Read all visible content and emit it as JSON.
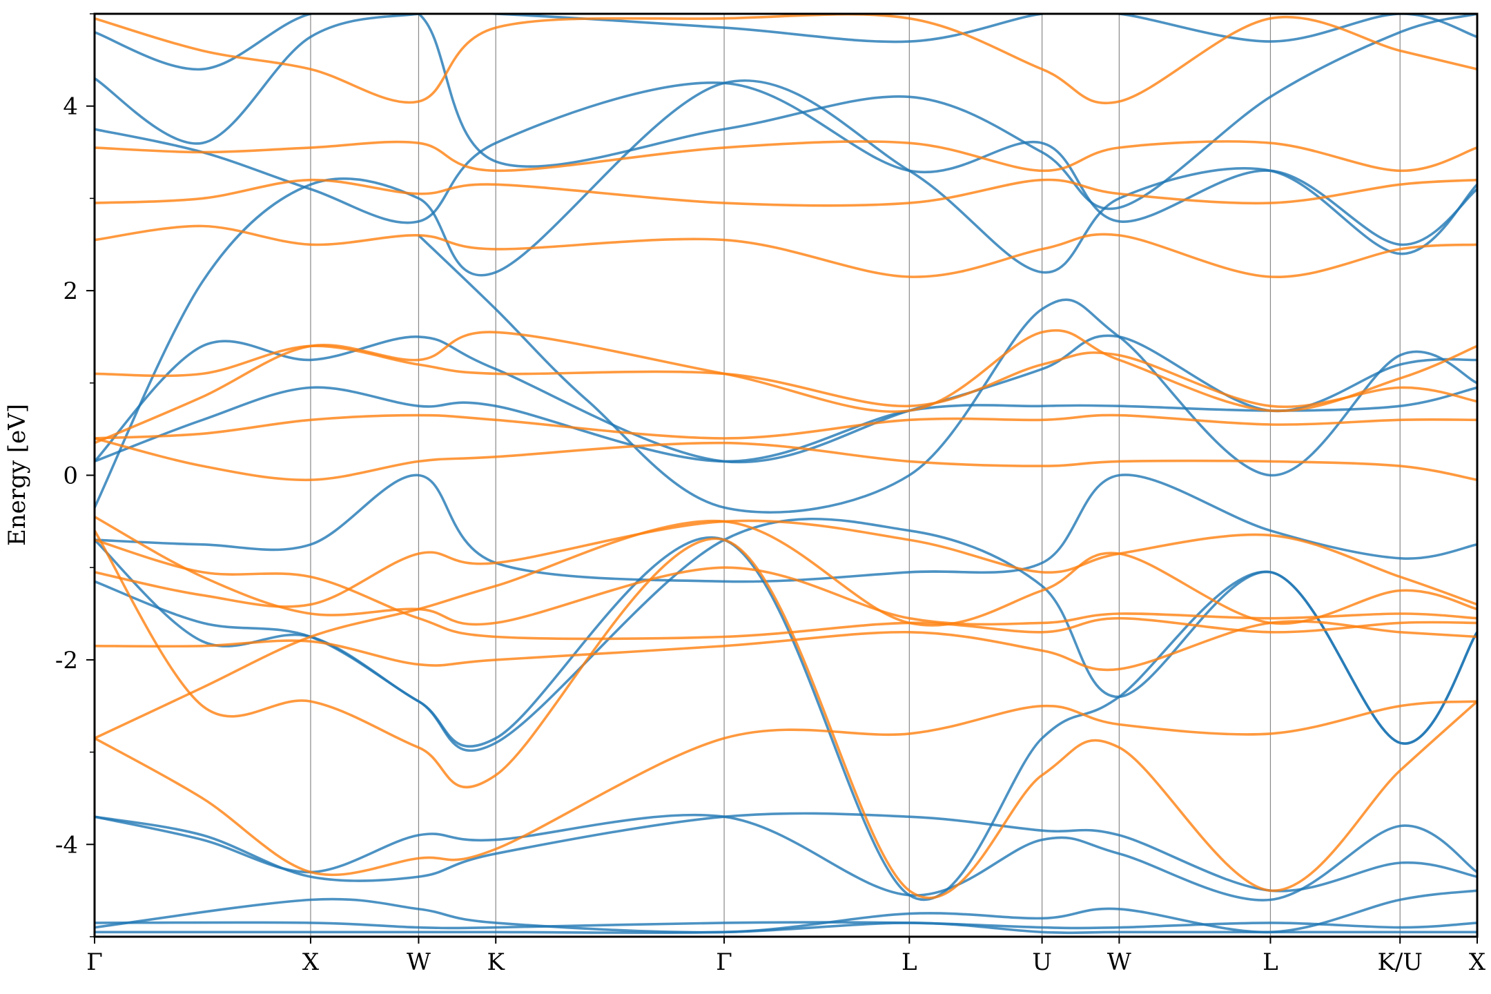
{
  "chart_data": {
    "type": "line",
    "title": "",
    "xlabel": "",
    "ylabel": "Energy [eV]",
    "ylim": [
      -5,
      5
    ],
    "xlim": [
      0,
      4.48
    ],
    "grid": false,
    "legend": "none",
    "yticks": [
      -4,
      -2,
      0,
      2,
      4
    ],
    "yticks_minor": [
      -5,
      -3,
      -1,
      1,
      3,
      5
    ],
    "ytick_labels": [
      "-4",
      "-2",
      "0",
      "2",
      "4"
    ],
    "kpoints": [
      {
        "label": "Γ",
        "x": 0.0
      },
      {
        "label": "X",
        "x": 0.7
      },
      {
        "label": "W",
        "x": 1.05
      },
      {
        "label": "K",
        "x": 1.3
      },
      {
        "label": "Γ",
        "x": 2.04
      },
      {
        "label": "L",
        "x": 2.64
      },
      {
        "label": "U",
        "x": 3.07
      },
      {
        "label": "W",
        "x": 3.32
      },
      {
        "label": "L",
        "x": 3.81
      },
      {
        "label": "K/U",
        "x": 4.23
      },
      {
        "label": "X",
        "x": 4.48
      }
    ],
    "series_colors": {
      "blue": "#1f77b4",
      "orange": "#ff7f0e"
    },
    "series": [
      {
        "color": "blue",
        "x": [
          0,
          0.7,
          1.05,
          1.3,
          2.04,
          2.64,
          3.07,
          3.32,
          3.81,
          4.23,
          4.48
        ],
        "y": [
          -4.85,
          -4.85,
          -4.9,
          -4.9,
          -4.85,
          -4.85,
          -4.9,
          -4.9,
          -4.85,
          -4.9,
          -4.85
        ]
      },
      {
        "color": "blue",
        "x": [
          0,
          0.7,
          1.05,
          1.3,
          2.04,
          2.64,
          3.07,
          3.32,
          3.81,
          4.23,
          4.48
        ],
        "y": [
          -4.9,
          -4.6,
          -4.7,
          -4.85,
          -4.95,
          -4.75,
          -4.8,
          -4.7,
          -4.95,
          -4.6,
          -4.5
        ]
      },
      {
        "color": "blue",
        "x": [
          0,
          0.35,
          0.7,
          1.05,
          1.3,
          2.04,
          2.64,
          3.07,
          3.32,
          3.81,
          4.23,
          4.48
        ],
        "y": [
          -3.7,
          -3.9,
          -4.35,
          -4.35,
          -4.1,
          -3.7,
          -3.7,
          -3.85,
          -3.9,
          -4.5,
          -4.2,
          -4.35
        ]
      },
      {
        "color": "blue",
        "x": [
          0,
          0.35,
          0.7,
          1.05,
          1.3,
          2.04,
          2.64,
          3.07,
          3.32,
          3.81,
          4.23,
          4.48
        ],
        "y": [
          -3.7,
          -3.95,
          -4.3,
          -3.9,
          -3.95,
          -3.7,
          -4.55,
          -3.95,
          -4.1,
          -4.6,
          -3.8,
          -4.3
        ]
      },
      {
        "color": "blue",
        "x": [
          0,
          0.35,
          0.7,
          1.05,
          1.3,
          2.04,
          2.64,
          3.07,
          3.32,
          3.81,
          4.23,
          4.48
        ],
        "y": [
          -0.7,
          -1.8,
          -1.75,
          -2.45,
          -2.85,
          -0.7,
          -4.55,
          -2.85,
          -2.4,
          -1.05,
          -2.9,
          -1.7
        ]
      },
      {
        "color": "blue",
        "x": [
          0,
          0.35,
          0.7,
          1.05,
          1.3,
          2.04,
          2.64,
          3.07,
          3.32,
          3.81,
          4.23,
          4.48
        ],
        "y": [
          -0.7,
          -0.75,
          -0.75,
          0.0,
          -0.95,
          -1.15,
          -1.05,
          -0.95,
          0.0,
          -0.6,
          -0.9,
          -0.75
        ]
      },
      {
        "color": "blue",
        "x": [
          0,
          0.35,
          0.7,
          1.05,
          1.3,
          2.04,
          2.64,
          3.07,
          3.32,
          3.81,
          4.23,
          4.48
        ],
        "y": [
          -1.15,
          -1.6,
          -1.75,
          -2.45,
          -2.9,
          -0.7,
          -0.6,
          -1.2,
          -2.4,
          -1.05,
          -2.9,
          -1.7
        ]
      },
      {
        "color": "blue",
        "x": [
          0,
          0.35,
          0.7,
          1.05,
          1.3,
          2.04,
          2.64,
          3.07,
          3.32,
          3.81,
          4.23,
          4.48
        ],
        "y": [
          0.15,
          0.6,
          0.95,
          0.75,
          0.75,
          0.15,
          0.7,
          0.75,
          0.75,
          0.7,
          0.75,
          0.95
        ]
      },
      {
        "color": "blue",
        "x": [
          0,
          0.35,
          0.7,
          1.05,
          1.3,
          2.04,
          2.64,
          3.07,
          3.32,
          3.81,
          4.23,
          4.48
        ],
        "y": [
          0.15,
          1.4,
          1.25,
          1.5,
          1.15,
          0.15,
          0.7,
          1.15,
          1.5,
          0.7,
          1.2,
          1.25
        ]
      },
      {
        "color": "blue",
        "x": [
          0,
          0.35,
          0.7,
          1.05,
          1.3,
          2.04,
          2.64,
          3.07,
          3.32,
          3.81,
          4.23,
          4.48
        ],
        "y": [
          -0.35,
          2.1,
          3.15,
          3.0,
          2.2,
          4.25,
          3.3,
          2.2,
          3.0,
          3.3,
          2.4,
          3.15
        ]
      },
      {
        "color": "blue",
        "x": [
          0,
          0.35,
          0.7,
          1.05,
          1.3,
          2.04,
          2.64,
          3.07,
          3.32,
          3.81,
          4.23,
          4.48
        ],
        "y": [
          3.75,
          3.5,
          3.1,
          2.75,
          3.6,
          4.25,
          3.3,
          3.6,
          2.75,
          3.3,
          2.5,
          3.1
        ]
      },
      {
        "color": "blue",
        "x": [
          0,
          0.35,
          0.7,
          1.05,
          1.3,
          2.04,
          2.64,
          3.07,
          3.32,
          3.81,
          4.23,
          4.48
        ],
        "y": [
          4.3,
          3.6,
          4.75,
          5.0,
          5.0,
          4.85,
          4.7,
          5.0,
          5.0,
          4.7,
          5.0,
          4.75
        ]
      },
      {
        "color": "blue",
        "x": [
          0,
          0.35,
          0.7,
          1.05,
          1.3,
          2.04,
          2.64,
          3.07,
          3.32,
          3.81,
          4.23,
          4.48
        ],
        "y": [
          4.8,
          4.4,
          5.0,
          5.0,
          3.4,
          3.75,
          4.1,
          3.5,
          2.9,
          4.1,
          4.8,
          5.0
        ]
      },
      {
        "color": "blue",
        "x": [
          0,
          1.05,
          1.3,
          2.04,
          2.64,
          3.07,
          3.32,
          3.81,
          4.23,
          4.48
        ],
        "y": [
          -4.95,
          -4.95,
          -4.95,
          -4.95,
          -4.85,
          -4.95,
          -4.95,
          -4.95,
          -4.95,
          -4.95
        ]
      },
      {
        "color": "blue",
        "x": [
          1.05,
          1.3,
          1.6,
          2.04,
          2.64,
          3.07,
          3.32,
          3.81,
          4.23,
          4.48
        ],
        "y": [
          2.6,
          1.8,
          0.8,
          -0.35,
          0.0,
          1.8,
          1.5,
          0.0,
          1.3,
          1.0
        ]
      },
      {
        "color": "orange",
        "x": [
          0,
          0.35,
          0.7,
          1.05,
          1.3,
          2.04,
          2.64,
          3.07,
          3.32,
          3.81,
          4.23,
          4.48
        ],
        "y": [
          -2.85,
          -2.3,
          -1.75,
          -1.45,
          -1.2,
          -0.5,
          -1.6,
          -1.25,
          -0.85,
          -1.6,
          -1.25,
          -1.45
        ]
      },
      {
        "color": "orange",
        "x": [
          0,
          0.35,
          0.7,
          1.05,
          1.3,
          2.04,
          2.64,
          3.07,
          3.32,
          3.81,
          4.23,
          4.48
        ],
        "y": [
          -2.85,
          -3.5,
          -4.3,
          -4.15,
          -4.05,
          -2.85,
          -2.8,
          -2.5,
          -2.7,
          -2.8,
          -2.5,
          -2.45
        ]
      },
      {
        "color": "orange",
        "x": [
          0,
          0.35,
          0.7,
          1.05,
          1.3,
          2.04,
          2.64,
          3.07,
          3.32,
          3.81,
          4.23,
          4.48
        ],
        "y": [
          -1.85,
          -1.85,
          -1.8,
          -2.05,
          -2.0,
          -1.85,
          -1.7,
          -1.9,
          -2.1,
          -1.6,
          -1.7,
          -1.75
        ]
      },
      {
        "color": "orange",
        "x": [
          0,
          0.35,
          0.7,
          1.05,
          1.3,
          2.04,
          2.64,
          3.07,
          3.32,
          3.81,
          4.23,
          4.48
        ],
        "y": [
          -1.05,
          -1.3,
          -1.4,
          -0.85,
          -0.95,
          -0.5,
          -0.7,
          -1.05,
          -0.85,
          -0.65,
          -1.1,
          -1.4
        ]
      },
      {
        "color": "orange",
        "x": [
          0,
          0.35,
          0.7,
          1.05,
          1.3,
          2.04,
          2.64,
          3.07,
          3.32,
          3.81,
          4.23,
          4.48
        ],
        "y": [
          -0.45,
          -1.1,
          -1.5,
          -1.45,
          -1.6,
          -1.0,
          -1.55,
          -1.6,
          -1.5,
          -1.55,
          -1.5,
          -1.55
        ]
      },
      {
        "color": "orange",
        "x": [
          0,
          0.35,
          0.7,
          1.05,
          1.3,
          2.04,
          2.64,
          3.07,
          3.32,
          3.81,
          4.23,
          4.48
        ],
        "y": [
          0.4,
          0.1,
          -0.05,
          0.15,
          0.2,
          0.35,
          0.15,
          0.1,
          0.15,
          0.15,
          0.1,
          -0.05
        ]
      },
      {
        "color": "orange",
        "x": [
          0,
          0.35,
          0.7,
          1.05,
          1.3,
          2.04,
          2.64,
          3.07,
          3.32,
          3.81,
          4.23,
          4.48
        ],
        "y": [
          0.4,
          0.45,
          0.6,
          0.65,
          0.6,
          0.4,
          0.6,
          0.6,
          0.65,
          0.55,
          0.6,
          0.6
        ]
      },
      {
        "color": "orange",
        "x": [
          0,
          0.35,
          0.7,
          1.05,
          1.3,
          2.04,
          2.64,
          3.07,
          3.32,
          3.81,
          4.23,
          4.48
        ],
        "y": [
          0.35,
          0.85,
          1.4,
          1.25,
          1.55,
          1.1,
          0.7,
          1.55,
          1.25,
          0.7,
          1.05,
          1.4
        ]
      },
      {
        "color": "orange",
        "x": [
          0,
          0.35,
          0.7,
          1.05,
          1.3,
          2.04,
          2.64,
          3.07,
          3.32,
          3.81,
          4.23,
          4.48
        ],
        "y": [
          1.1,
          1.1,
          1.4,
          1.2,
          1.1,
          1.1,
          0.75,
          1.2,
          1.3,
          0.75,
          0.95,
          0.8
        ]
      },
      {
        "color": "orange",
        "x": [
          0,
          0.35,
          0.7,
          1.05,
          1.3,
          2.04,
          2.64,
          3.07,
          3.32,
          3.81,
          4.23,
          4.48
        ],
        "y": [
          2.55,
          2.7,
          2.5,
          2.6,
          2.45,
          2.55,
          2.15,
          2.45,
          2.6,
          2.15,
          2.45,
          2.5
        ]
      },
      {
        "color": "orange",
        "x": [
          0,
          0.35,
          0.7,
          1.05,
          1.3,
          2.04,
          2.64,
          3.07,
          3.32,
          3.81,
          4.23,
          4.48
        ],
        "y": [
          2.95,
          3.0,
          3.2,
          3.05,
          3.15,
          2.95,
          2.95,
          3.2,
          3.05,
          2.95,
          3.15,
          3.2
        ]
      },
      {
        "color": "orange",
        "x": [
          0,
          0.35,
          0.7,
          1.05,
          1.3,
          2.04,
          2.64,
          3.07,
          3.32,
          3.81,
          4.23,
          4.48
        ],
        "y": [
          3.55,
          3.5,
          3.55,
          3.6,
          3.3,
          3.55,
          3.6,
          3.3,
          3.55,
          3.6,
          3.3,
          3.55
        ]
      },
      {
        "color": "orange",
        "x": [
          0,
          0.35,
          0.7,
          1.05,
          1.3,
          2.04,
          2.64,
          3.07,
          3.32,
          3.81,
          4.23,
          4.48
        ],
        "y": [
          4.95,
          4.6,
          4.4,
          4.05,
          4.85,
          4.95,
          4.95,
          4.4,
          4.05,
          4.95,
          4.6,
          4.4
        ]
      },
      {
        "color": "orange",
        "x": [
          0,
          0.35,
          0.7,
          1.05,
          1.3,
          2.04,
          2.64,
          3.07,
          3.32,
          3.81,
          4.23,
          4.48
        ],
        "y": [
          -0.7,
          -1.05,
          -1.1,
          -1.55,
          -1.75,
          -1.75,
          -1.6,
          -1.7,
          -1.55,
          -1.7,
          -1.6,
          -1.6
        ]
      },
      {
        "color": "orange",
        "x": [
          0,
          0.35,
          0.7,
          1.05,
          1.3,
          2.04,
          2.64,
          3.07,
          3.32,
          3.81,
          4.23,
          4.48
        ],
        "y": [
          -0.6,
          -2.5,
          -2.45,
          -2.95,
          -3.25,
          -0.7,
          -4.5,
          -3.25,
          -2.95,
          -4.5,
          -3.2,
          -2.45
        ]
      }
    ]
  }
}
